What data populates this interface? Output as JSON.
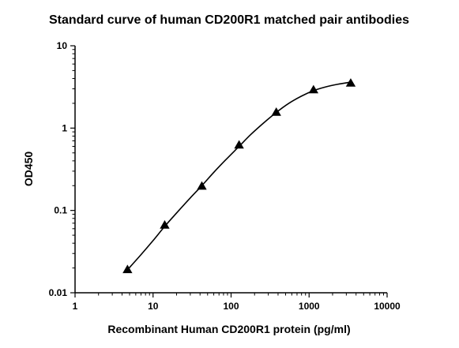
{
  "chart_data": {
    "type": "scatter",
    "title": "Standard curve of human CD200R1 matched pair antibodies",
    "xlabel": "Recombinant Human CD200R1 protein (pg/ml)",
    "ylabel": "OD450",
    "x_scale": "log",
    "y_scale": "log",
    "xlim": [
      1,
      10000
    ],
    "ylim": [
      0.01,
      10
    ],
    "x_ticks": [
      "1",
      "10",
      "100",
      "1000",
      "10000"
    ],
    "y_ticks": [
      "0.01",
      "0.1",
      "1",
      "10"
    ],
    "grid": false,
    "marker": "triangle",
    "series": [
      {
        "x": [
          4.7,
          14.1,
          42.2,
          126.6,
          379.6,
          1138.9,
          3416.7
        ],
        "y": [
          0.019,
          0.066,
          0.196,
          0.62,
          1.55,
          2.9,
          3.5
        ],
        "fit_curve": {
          "x": [
            4.7,
            7,
            10,
            14.1,
            20,
            30,
            42.2,
            60,
            85,
            126.6,
            180,
            260,
            379.6,
            550,
            800,
            1138.9,
            1600,
            2300,
            3416.7
          ],
          "y": [
            0.019,
            0.029,
            0.043,
            0.064,
            0.093,
            0.142,
            0.2,
            0.29,
            0.41,
            0.6,
            0.84,
            1.15,
            1.55,
            2.0,
            2.45,
            2.85,
            3.15,
            3.4,
            3.62
          ]
        }
      }
    ]
  }
}
